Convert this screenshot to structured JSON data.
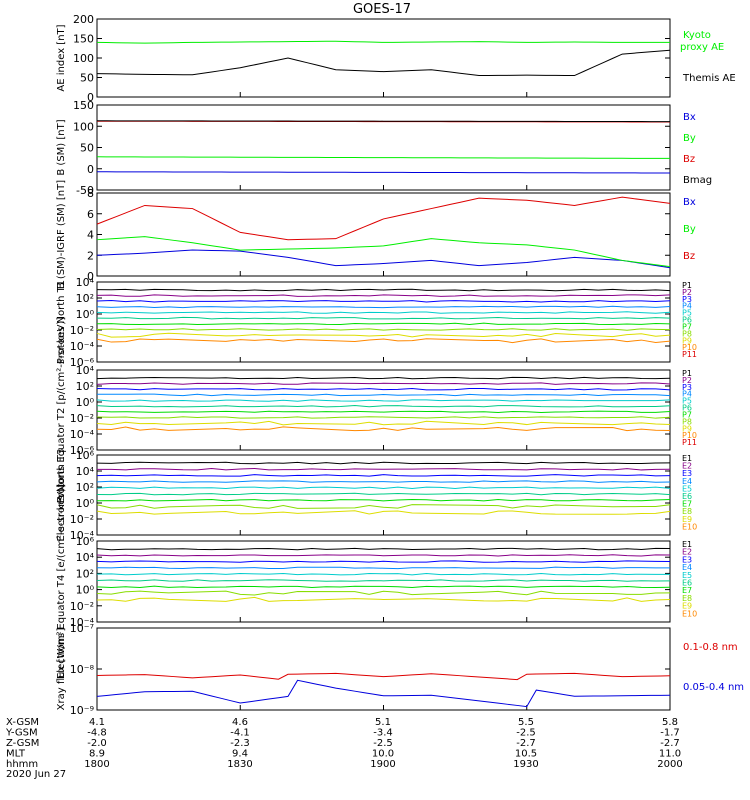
{
  "title": "GOES-17",
  "date": "2020 Jun 27",
  "colors": {
    "black": "#000000",
    "green": "#00ee00",
    "blue": "#0000dd",
    "red": "#dd0000",
    "p_palette": [
      "#000000",
      "#880088",
      "#0000ff",
      "#0088ff",
      "#00cccc",
      "#00cc88",
      "#00dd00",
      "#88dd00",
      "#dddd00",
      "#ff8800",
      "#dd0000",
      "#990000"
    ]
  },
  "xaxis": {
    "ticks": [
      "1800",
      "1830",
      "1900",
      "1930",
      "2000"
    ],
    "rows": [
      {
        "label": "X-GSM",
        "values": [
          "4.1",
          "4.6",
          "5.1",
          "5.5",
          "5.8"
        ]
      },
      {
        "label": "Y-GSM",
        "values": [
          "-4.8",
          "-4.1",
          "-3.4",
          "-2.5",
          "-1.7"
        ]
      },
      {
        "label": "Z-GSM",
        "values": [
          "-2.0",
          "-2.3",
          "-2.5",
          "-2.7",
          "-2.7"
        ]
      },
      {
        "label": "MLT",
        "values": [
          "8.9",
          "9.4",
          "10.0",
          "10.5",
          "11.0"
        ]
      },
      {
        "label": "hhmm",
        "values": [
          "1800",
          "1830",
          "1900",
          "1930",
          "2000"
        ]
      }
    ]
  },
  "chart_data": [
    {
      "type": "line",
      "id": "ae",
      "ylabel": "AE index [nT]",
      "ylim": [
        0,
        200
      ],
      "yticks": [
        "0",
        "50",
        "100",
        "150",
        "200"
      ],
      "x": [
        0,
        10,
        20,
        30,
        40,
        50,
        60,
        70,
        80,
        90,
        100,
        110,
        120
      ],
      "series": [
        {
          "name": "Kyoto proxy AE",
          "color": "#00ee00",
          "values": [
            140,
            138,
            140,
            141,
            142,
            143,
            140,
            141,
            142,
            140,
            141,
            140,
            140
          ]
        },
        {
          "name": "Themis AE",
          "color": "#000000",
          "values": [
            60,
            58,
            57,
            75,
            100,
            70,
            65,
            70,
            55,
            56,
            55,
            110,
            120
          ]
        }
      ],
      "legend": [
        "Kyoto",
        "proxy AE",
        "Themis AE"
      ]
    },
    {
      "type": "line",
      "id": "bsm",
      "ylabel": "B (SM) [nT]",
      "ylim": [
        -60,
        150
      ],
      "yticks": [
        "-50",
        "0",
        "50",
        "100",
        "150"
      ],
      "series": [
        {
          "name": "Bx",
          "color": "#0000dd",
          "values": [
            -15,
            -18
          ]
        },
        {
          "name": "By",
          "color": "#00ee00",
          "values": [
            22,
            18
          ]
        },
        {
          "name": "Bz",
          "color": "#dd0000",
          "values": [
            110,
            108
          ]
        },
        {
          "name": "Bmag",
          "color": "#000000",
          "values": [
            111,
            109
          ]
        }
      ]
    },
    {
      "type": "line",
      "id": "bdiff",
      "ylabel": "B (SM)-IGRF (SM) [nT]",
      "ylim": [
        0,
        8
      ],
      "yticks": [
        "0",
        "2",
        "4",
        "6",
        "8"
      ],
      "series": [
        {
          "name": "Bx",
          "color": "#0000dd",
          "values": [
            2,
            2.2,
            2.5,
            2.4,
            1.8,
            1,
            1.2,
            1.5,
            1,
            1.3,
            1.8,
            1.5,
            0.8
          ]
        },
        {
          "name": "By",
          "color": "#00ee00",
          "values": [
            3.5,
            3.8,
            3.2,
            2.5,
            2.6,
            2.7,
            2.9,
            3.6,
            3.2,
            3,
            2.5,
            1.5,
            0.9
          ]
        },
        {
          "name": "Bz",
          "color": "#dd0000",
          "values": [
            5,
            6.8,
            6.5,
            4.2,
            3.5,
            3.6,
            5.5,
            6.5,
            7.5,
            7.3,
            6.8,
            7.6,
            7
          ]
        }
      ]
    },
    {
      "type": "line",
      "id": "pn",
      "ylabel": "Protons North T1",
      "ylim": [
        "1e-6",
        "1e4"
      ],
      "yticks": [
        "10⁴",
        "10²",
        "10⁰",
        "10⁻²",
        "10⁻⁴",
        "10⁻⁶"
      ],
      "channels": [
        "P1",
        "P2",
        "P3",
        "P4",
        "P5",
        "P6",
        "P7",
        "P8",
        "P9",
        "P10",
        "P11"
      ]
    },
    {
      "type": "line",
      "id": "pe",
      "ylabel": "Protons Equator T2 [p/(cm²-s-sr-keV)]",
      "ylim": [
        "1e-6",
        "1e4"
      ],
      "yticks": [
        "10⁴",
        "10²",
        "10⁰",
        "10⁻²",
        "10⁻⁴",
        "10⁻⁶"
      ],
      "channels": [
        "P1",
        "P2",
        "P3",
        "P4",
        "P5",
        "P6",
        "P7",
        "P8",
        "P9",
        "P10",
        "P11"
      ]
    },
    {
      "type": "line",
      "id": "en",
      "ylabel": "Electrons North T3",
      "ylim": [
        "1e-4",
        "1e6"
      ],
      "yticks": [
        "10⁶",
        "10⁴",
        "10²",
        "10⁰",
        "10⁻²",
        "10⁻⁴"
      ],
      "channels": [
        "E1",
        "E2",
        "E3",
        "E4",
        "E5",
        "E6",
        "E7",
        "E8",
        "E9",
        "E10"
      ]
    },
    {
      "type": "line",
      "id": "ee",
      "ylabel": "Electrons Equator T4 [e/(cm²-s-sr-keV)]",
      "ylim": [
        "1e-4",
        "1e6"
      ],
      "yticks": [
        "10⁶",
        "10⁴",
        "10²",
        "10⁰",
        "10⁻²",
        "10⁻⁴"
      ],
      "channels": [
        "E1",
        "E2",
        "E3",
        "E4",
        "E5",
        "E6",
        "E7",
        "E8",
        "E9",
        "E10"
      ]
    },
    {
      "type": "line",
      "id": "xray",
      "ylabel": "Xray flux [W/m²]",
      "ylim": [
        "1e-9",
        "1e-7"
      ],
      "yticks": [
        "10⁻⁷",
        "10⁻⁸",
        "10⁻⁹"
      ],
      "series": [
        {
          "name": "0.1-0.8 nm",
          "color": "#dd0000",
          "values": [
            -8.2,
            -8.15,
            -8.2,
            -8.1,
            -8.2,
            -8.15,
            -8.2,
            -8.1,
            -8.15,
            -8.2,
            -8.15,
            -8.2,
            -8.15
          ]
        },
        {
          "name": "0.05-0.4 nm",
          "color": "#0000dd",
          "values": [
            -8.8,
            -8.6,
            -8.5,
            -8.7,
            -8.45,
            -8.6,
            -8.7,
            -8.6,
            -8.65,
            -8.7,
            -8.8,
            -8.7,
            -8.6
          ]
        }
      ]
    }
  ]
}
